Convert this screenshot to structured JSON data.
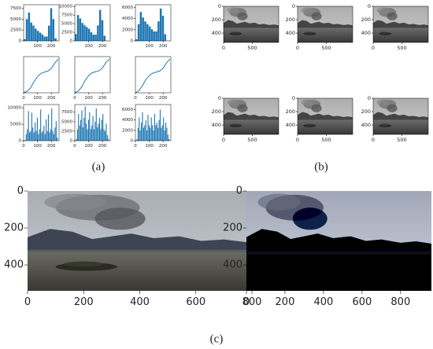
{
  "panel_labels": [
    "(a)",
    "(b)",
    "(c)"
  ],
  "chart_data": [
    {
      "type": "histogram",
      "bins": [
        0,
        16,
        32,
        48,
        64,
        80,
        96,
        112,
        128,
        144,
        160,
        176,
        192,
        208,
        224,
        240,
        256
      ],
      "values": [
        400,
        5000,
        6500,
        4200,
        3500,
        2800,
        2300,
        1900,
        1500,
        1000,
        1000,
        3500,
        7500,
        5000,
        600,
        0
      ],
      "color": "#1f77b4",
      "xlim": [
        0,
        256
      ],
      "ylim": [
        0,
        8300
      ],
      "xticks": [
        100,
        200
      ],
      "yticks": [
        0,
        2500,
        5000,
        7500
      ]
    },
    {
      "type": "histogram",
      "bins": [
        0,
        16,
        32,
        48,
        64,
        80,
        96,
        112,
        128,
        144,
        160,
        176,
        192,
        208,
        224,
        240,
        256
      ],
      "values": [
        2000,
        7500,
        6500,
        5200,
        4500,
        4000,
        3500,
        2500,
        1800,
        1800,
        4500,
        9000,
        6000,
        1500,
        0,
        0
      ],
      "color": "#1f77b4",
      "xlim": [
        0,
        256
      ],
      "ylim": [
        0,
        10500
      ],
      "xticks": [
        100,
        200
      ],
      "yticks": [
        0,
        2500,
        5000,
        7500,
        10000
      ]
    },
    {
      "type": "histogram",
      "bins": [
        0,
        16,
        32,
        48,
        64,
        80,
        96,
        112,
        128,
        144,
        160,
        176,
        192,
        208,
        224,
        240,
        256
      ],
      "values": [
        300,
        3000,
        5200,
        4200,
        3500,
        3000,
        2600,
        2100,
        1700,
        1700,
        3500,
        5800,
        4500,
        1200,
        0,
        0
      ],
      "color": "#1f77b4",
      "xlim": [
        0,
        256
      ],
      "ylim": [
        0,
        6500
      ],
      "xticks": [
        100,
        200
      ],
      "yticks": [
        0,
        2000,
        4000,
        6000
      ]
    },
    {
      "type": "line",
      "x": [
        0,
        25,
        50,
        75,
        100,
        125,
        150,
        175,
        200,
        225,
        250
      ],
      "values": [
        0,
        0.04,
        0.14,
        0.32,
        0.47,
        0.56,
        0.6,
        0.63,
        0.7,
        0.86,
        0.98
      ],
      "color": "#1f77b4",
      "xlim": [
        0,
        256
      ],
      "ylim": [
        0,
        1.05
      ],
      "xticks": [
        0,
        100,
        200
      ]
    },
    {
      "type": "line",
      "x": [
        0,
        25,
        50,
        75,
        100,
        125,
        150,
        175,
        200,
        225,
        250
      ],
      "values": [
        0,
        0.05,
        0.17,
        0.36,
        0.5,
        0.58,
        0.61,
        0.64,
        0.72,
        0.88,
        0.98
      ],
      "color": "#1f77b4",
      "xlim": [
        0,
        256
      ],
      "ylim": [
        0,
        1.05
      ],
      "xticks": [
        0,
        100,
        200
      ]
    },
    {
      "type": "line",
      "x": [
        0,
        25,
        50,
        75,
        100,
        125,
        150,
        175,
        200,
        225,
        250
      ],
      "values": [
        0,
        0.06,
        0.2,
        0.38,
        0.5,
        0.57,
        0.6,
        0.63,
        0.71,
        0.87,
        0.98
      ],
      "color": "#1f77b4",
      "xlim": [
        0,
        256
      ],
      "ylim": [
        0,
        1.05
      ],
      "xticks": [
        0,
        100,
        200
      ]
    },
    {
      "type": "histogram",
      "bins": [
        0,
        8,
        16,
        24,
        32,
        40,
        48,
        56,
        64,
        72,
        80,
        88,
        96,
        104,
        112,
        120,
        128,
        136,
        144,
        152,
        160,
        168,
        176,
        184,
        192,
        200,
        208,
        216,
        224,
        232,
        240,
        248,
        256
      ],
      "values": [
        0,
        200,
        2000,
        3500,
        9000,
        2500,
        3000,
        8500,
        4000,
        2500,
        5500,
        3000,
        7000,
        2000,
        3500,
        9500,
        2500,
        3000,
        4500,
        2000,
        6500,
        3000,
        8000,
        2500,
        3500,
        9800,
        3000,
        2000,
        4000,
        6000,
        1000,
        0
      ],
      "color": "#1f77b4",
      "xlim": [
        0,
        256
      ],
      "ylim": [
        0,
        11000
      ],
      "xticks": [
        0,
        100,
        200
      ],
      "yticks": [
        0,
        5000,
        10000
      ]
    },
    {
      "type": "histogram",
      "bins": [
        0,
        8,
        16,
        24,
        32,
        40,
        48,
        56,
        64,
        72,
        80,
        88,
        96,
        104,
        112,
        120,
        128,
        136,
        144,
        152,
        160,
        168,
        176,
        184,
        192,
        200,
        208,
        216,
        224,
        232,
        240,
        248,
        256
      ],
      "values": [
        0,
        500,
        3000,
        7000,
        4000,
        5500,
        8000,
        3500,
        6000,
        9000,
        4500,
        3000,
        5500,
        7500,
        3000,
        4000,
        6500,
        3000,
        5000,
        8500,
        3500,
        4500,
        6000,
        3000,
        5500,
        7000,
        3000,
        2500,
        4500,
        1500,
        500,
        0
      ],
      "color": "#1f77b4",
      "xlim": [
        0,
        256
      ],
      "ylim": [
        0,
        9500
      ],
      "xticks": [
        0,
        100,
        200
      ],
      "yticks": [
        0,
        2500,
        5000,
        7500
      ]
    },
    {
      "type": "histogram",
      "bins": [
        0,
        8,
        16,
        24,
        32,
        40,
        48,
        56,
        64,
        72,
        80,
        88,
        96,
        104,
        112,
        120,
        128,
        136,
        144,
        152,
        160,
        168,
        176,
        184,
        192,
        200,
        208,
        216,
        224,
        232,
        240,
        248,
        256
      ],
      "values": [
        0,
        300,
        2500,
        4500,
        2000,
        3500,
        5500,
        2500,
        3000,
        4000,
        2000,
        5000,
        3000,
        2500,
        4500,
        3000,
        2000,
        5200,
        3000,
        3500,
        2500,
        4000,
        6000,
        2500,
        3000,
        4500,
        2000,
        3500,
        2500,
        1200,
        300,
        0
      ],
      "color": "#1f77b4",
      "xlim": [
        0,
        256
      ],
      "ylim": [
        0,
        7000
      ],
      "xticks": [
        0,
        100,
        200
      ],
      "yticks": [
        0,
        2000,
        4000,
        6000
      ]
    },
    {
      "type": "image",
      "style": "gray",
      "xlim": [
        0,
        960
      ],
      "ylim": [
        0,
        540
      ],
      "xticks": [
        0,
        500
      ],
      "yticks": [
        0,
        200,
        400
      ]
    },
    {
      "type": "image",
      "style": "gray",
      "xlim": [
        0,
        960
      ],
      "ylim": [
        0,
        540
      ],
      "xticks": [
        0,
        500
      ],
      "yticks": [
        0,
        200,
        400
      ]
    },
    {
      "type": "image",
      "style": "gray",
      "xlim": [
        0,
        960
      ],
      "ylim": [
        0,
        540
      ],
      "xticks": [
        0,
        500
      ],
      "yticks": [
        0,
        200,
        400
      ]
    },
    {
      "type": "image",
      "style": "gray",
      "xlim": [
        0,
        960
      ],
      "ylim": [
        0,
        540
      ],
      "xticks": [
        0,
        500
      ],
      "yticks": [
        0,
        200,
        400
      ]
    },
    {
      "type": "image",
      "style": "gray",
      "xlim": [
        0,
        960
      ],
      "ylim": [
        0,
        540
      ],
      "xticks": [
        0,
        500
      ],
      "yticks": [
        0,
        200,
        400
      ]
    },
    {
      "type": "image",
      "style": "gray",
      "xlim": [
        0,
        960
      ],
      "ylim": [
        0,
        540
      ],
      "xticks": [
        0,
        500
      ],
      "yticks": [
        0,
        200,
        400
      ]
    },
    {
      "type": "image",
      "style": "color",
      "xlim": [
        0,
        960
      ],
      "ylim": [
        0,
        540
      ],
      "xticks": [
        0,
        200,
        400,
        600,
        800
      ],
      "yticks": [
        0,
        200,
        400
      ]
    },
    {
      "type": "image",
      "style": "enhanced",
      "xlim": [
        0,
        960
      ],
      "ylim": [
        0,
        540
      ],
      "xticks": [
        0,
        200,
        400,
        600,
        800
      ],
      "yticks": [
        0,
        200,
        400
      ]
    }
  ]
}
